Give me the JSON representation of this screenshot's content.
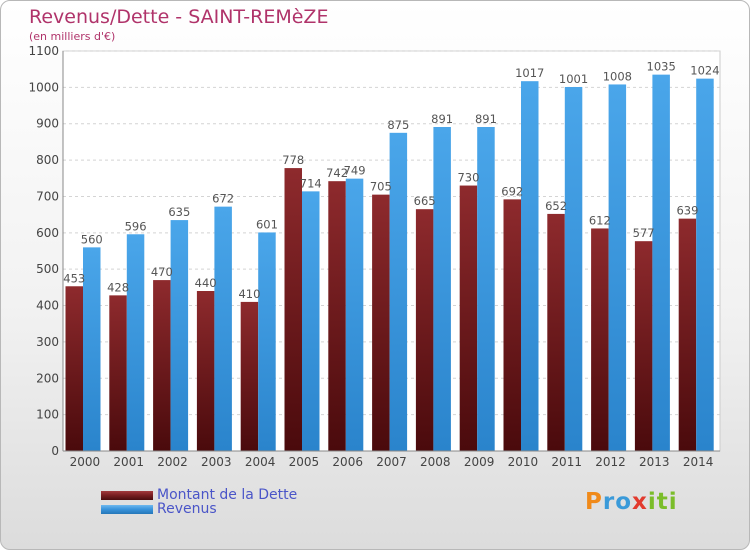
{
  "title": "Revenus/Dette - SAINT-REMèZE",
  "subtitle": "(en milliers d'€)",
  "logo": {
    "letters": [
      "P",
      "r",
      "o",
      "x",
      "i",
      "t",
      "i"
    ],
    "colors": [
      "#f08a1a",
      "#3a9ad9",
      "#3a9ad9",
      "#e23b2e",
      "#7bbd2a",
      "#7bbd2a",
      "#7bbd2a"
    ]
  },
  "colors": {
    "dette": "#7a1f22",
    "revenus": "#3a95dd",
    "title": "#b0336a",
    "legend_text": "#4a55c8"
  },
  "chart_data": {
    "type": "bar",
    "title": "Revenus/Dette - SAINT-REMèZE",
    "ylabel": "(en milliers d'€)",
    "ylim": [
      0,
      1100
    ],
    "yticks": [
      0,
      100,
      200,
      300,
      400,
      500,
      600,
      700,
      800,
      900,
      1000,
      1100
    ],
    "grid": true,
    "legend": "bottom-left",
    "categories": [
      "2000",
      "2001",
      "2002",
      "2003",
      "2004",
      "2005",
      "2006",
      "2007",
      "2008",
      "2009",
      "2010",
      "2011",
      "2012",
      "2013",
      "2014"
    ],
    "series": [
      {
        "name": "Montant de la Dette",
        "values": [
          453,
          428,
          470,
          440,
          410,
          778,
          742,
          705,
          665,
          730,
          692,
          652,
          612,
          577,
          639
        ]
      },
      {
        "name": "Revenus",
        "values": [
          560,
          596,
          635,
          672,
          601,
          714,
          749,
          875,
          891,
          891,
          1017,
          1001,
          1008,
          1035,
          1024
        ]
      }
    ]
  }
}
